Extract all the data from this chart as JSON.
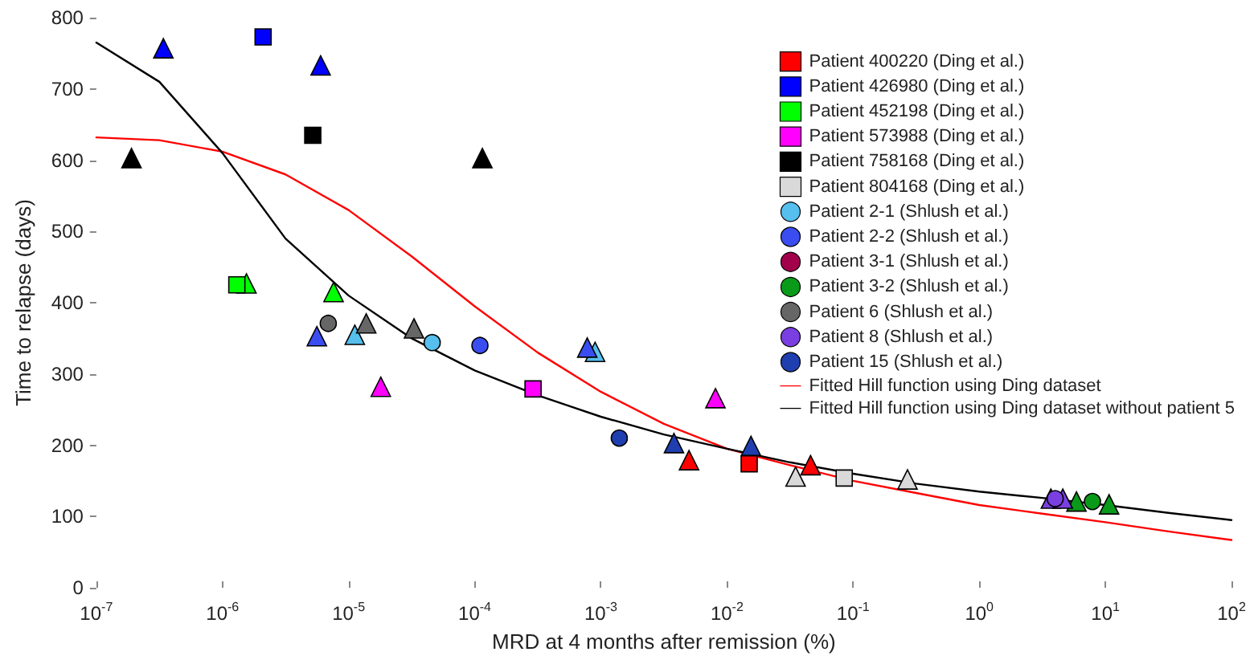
{
  "chart_data": {
    "type": "scatter",
    "xlabel": "MRD at 4 months after remission (%)",
    "ylabel": "Time to relapse (days)",
    "log": "x",
    "xlim": [
      1e-07,
      100
    ],
    "xticks": [
      {
        "value": 1e-07,
        "label": "10$^{-7}$"
      },
      {
        "value": 1e-06,
        "label": "10$^{-6}$"
      },
      {
        "value": 1e-05,
        "label": "10$^{-5}$"
      },
      {
        "value": 0.0001,
        "label": "10$^{-4}$"
      },
      {
        "value": 0.001,
        "label": "10$^{-3}$"
      },
      {
        "value": 0.01,
        "label": "10$^{-2}$"
      },
      {
        "value": 0.1,
        "label": "10$^{-1}$"
      },
      {
        "value": 1,
        "label": "10$^{0}$"
      },
      {
        "value": 10,
        "label": "10$^{1}$"
      },
      {
        "value": 100,
        "label": "10$^{2}$"
      }
    ],
    "ylim": [
      0,
      800
    ],
    "yticks": [
      0,
      100,
      200,
      300,
      400,
      500,
      600,
      700,
      800
    ],
    "grid": false,
    "legend": "top right",
    "series": [
      {
        "name": "Patient 400220 (Ding et al.)",
        "color": "#ff0000",
        "marker": "square",
        "x": [
          0.015
        ],
        "values": [
          174
        ]
      },
      {
        "name": "Patient 426980 (Ding et al.)",
        "color": "#0000ff",
        "marker": "square",
        "x": [
          2.1e-06
        ],
        "values": [
          773
        ]
      },
      {
        "name": "Patient 452198 (Ding et al.)",
        "color": "#00ff00",
        "marker": "square",
        "x": [
          1.3e-06
        ],
        "values": [
          425
        ]
      },
      {
        "name": "Patient 573988 (Ding et al.)",
        "color": "#ff00ff",
        "marker": "square",
        "x": [
          0.00029
        ],
        "values": [
          279
        ]
      },
      {
        "name": "Patient 758168 (Ding et al.)",
        "color": "#000000",
        "marker": "square",
        "x": [
          5.2e-06
        ],
        "values": [
          635
        ]
      },
      {
        "name": "Patient 804168 (Ding et al.)",
        "color": "#d9d9d9",
        "marker": "square",
        "x": [
          0.085
        ],
        "values": [
          154
        ]
      },
      {
        "name": "Patient 2-1 (Shlush et al.)",
        "color": "#56bfee",
        "marker": "circle",
        "x": [
          4.6e-05
        ],
        "values": [
          344
        ]
      },
      {
        "name": "Patient 2-2 (Shlush et al.)",
        "color": "#3a4df0",
        "marker": "circle",
        "x": [
          0.00011
        ],
        "values": [
          340
        ]
      },
      {
        "name": "Patient 3-1 (Shlush et al.)",
        "color": "#a3004c",
        "marker": "circle"
      },
      {
        "name": "Patient 3-2 (Shlush et al.)",
        "color": "#0a9a1a",
        "marker": "circle",
        "x": [
          7.9
        ],
        "values": [
          121
        ]
      },
      {
        "name": "Patient 6 (Shlush et al.)",
        "color": "#666666",
        "marker": "circle",
        "x": [
          6.9e-06
        ],
        "values": [
          371
        ]
      },
      {
        "name": "Patient 8 (Shlush et al.)",
        "color": "#7a3fe0",
        "marker": "circle",
        "x": [
          4.0
        ],
        "values": [
          125
        ]
      },
      {
        "name": "Patient 15 (Shlush et al.)",
        "color": "#1f3fb0",
        "marker": "circle",
        "x": [
          0.0014
        ],
        "values": [
          210
        ]
      },
      {
        "color": "#ff0000",
        "marker": "triangle",
        "x": [
          0.005,
          0.046
        ],
        "values": [
          179,
          172
        ]
      },
      {
        "color": "#0000ff",
        "marker": "triangle",
        "x": [
          3.4e-07,
          6e-06
        ],
        "values": [
          757,
          733
        ]
      },
      {
        "color": "#00ff00",
        "marker": "triangle",
        "x": [
          1.55e-06,
          7.6e-06
        ],
        "values": [
          427,
          415
        ]
      },
      {
        "color": "#ff00ff",
        "marker": "triangle",
        "x": [
          1.8e-05,
          0.0081
        ],
        "values": [
          282,
          266
        ]
      },
      {
        "color": "#000000",
        "marker": "triangle",
        "x": [
          1.9e-07,
          0.000115
        ],
        "values": [
          603,
          603
        ]
      },
      {
        "color": "#d9d9d9",
        "marker": "triangle",
        "x": [
          0.035,
          0.27
        ],
        "values": [
          156,
          152
        ]
      },
      {
        "color": "#56bfee",
        "marker": "triangle",
        "x": [
          1.12e-05,
          0.0009
        ],
        "values": [
          355,
          331
        ]
      },
      {
        "color": "#3a4df0",
        "marker": "triangle",
        "x": [
          5.6e-06,
          0.00078
        ],
        "values": [
          353,
          337
        ]
      },
      {
        "color": "#0a9a1a",
        "marker": "triangle",
        "x": [
          5.9,
          10.7
        ],
        "values": [
          121,
          117
        ]
      },
      {
        "color": "#666666",
        "marker": "triangle",
        "x": [
          1.38e-05,
          3.3e-05
        ],
        "values": [
          371,
          364
        ]
      },
      {
        "color": "#7a3fe0",
        "marker": "triangle",
        "x": [
          3.7,
          4.6
        ],
        "values": [
          125,
          125
        ]
      },
      {
        "color": "#1f3fb0",
        "marker": "triangle",
        "x": [
          0.0038,
          0.0155
        ],
        "values": [
          203,
          199
        ]
      },
      {
        "name": "Fitted Hill function using Ding dataset",
        "type": "line",
        "color": "#ff0000",
        "marker": "none",
        "line_style": "solid",
        "x": [
          1e-07,
          3.16e-07,
          1e-06,
          3.16e-06,
          1e-05,
          3.16e-05,
          0.0001,
          0.000316,
          0.001,
          0.00316,
          0.01,
          0.0316,
          0.1,
          0.316,
          1,
          3.16,
          10,
          31.6,
          100
        ],
        "values": [
          632,
          628,
          612,
          580,
          530,
          465,
          395,
          330,
          275,
          230,
          195,
          172,
          150,
          133,
          116,
          104,
          92,
          79,
          67
        ]
      },
      {
        "name": "Fitted Hill function using Ding dataset without patient 5",
        "type": "line",
        "color": "#000000",
        "marker": "none",
        "line_style": "solid",
        "x": [
          1e-07,
          3.16e-07,
          1e-06,
          3.16e-06,
          1e-05,
          3.16e-05,
          0.0001,
          0.000316,
          0.001,
          0.00316,
          0.01,
          0.0316,
          0.1,
          0.316,
          1,
          3.16,
          10,
          31.6,
          100
        ],
        "values": [
          765,
          710,
          610,
          490,
          410,
          350,
          305,
          270,
          240,
          215,
          195,
          176,
          160,
          146,
          135,
          126,
          116,
          105,
          95
        ]
      }
    ]
  }
}
